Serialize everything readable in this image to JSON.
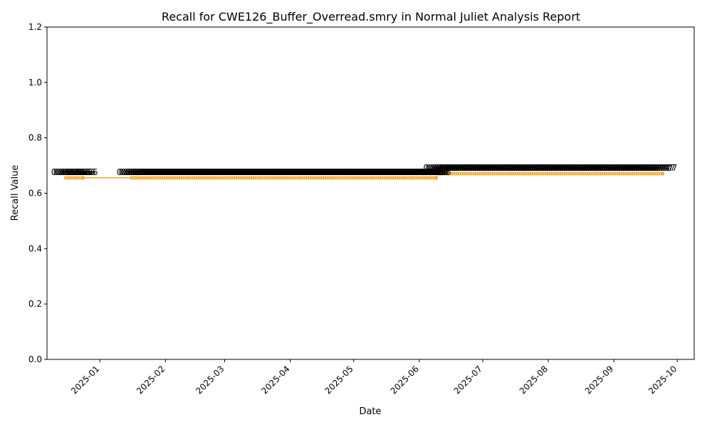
{
  "chart_data": {
    "type": "line",
    "title": "Recall for CWE126_Buffer_Overread.smry in Normal Juliet Analysis Report",
    "xlabel": "Date",
    "ylabel": "Recall Value",
    "ylim": [
      0,
      1.2
    ],
    "yticks": [
      "0.0",
      "0.2",
      "0.4",
      "0.6",
      "0.8",
      "1.0",
      "1.2"
    ],
    "xlim": [
      "2024-12-07",
      "2025-10-09"
    ],
    "xticks": [
      {
        "date": "2025-01-01",
        "label": "2025-01"
      },
      {
        "date": "2025-02-01",
        "label": "2025-02"
      },
      {
        "date": "2025-03-01",
        "label": "2025-03"
      },
      {
        "date": "2025-04-01",
        "label": "2025-04"
      },
      {
        "date": "2025-05-01",
        "label": "2025-05"
      },
      {
        "date": "2025-06-01",
        "label": "2025-06"
      },
      {
        "date": "2025-07-01",
        "label": "2025-07"
      },
      {
        "date": "2025-08-01",
        "label": "2025-08"
      },
      {
        "date": "2025-09-01",
        "label": "2025-09"
      },
      {
        "date": "2025-10-01",
        "label": "2025-10"
      }
    ],
    "grid": false,
    "color": "#f5a623",
    "series": [
      {
        "segments": [
          {
            "start": "2024-12-16",
            "end": "2024-12-24",
            "value": 0.6556,
            "label": "0.6556"
          },
          {
            "start": "2025-01-16",
            "end": "2025-06-09",
            "value": 0.6556,
            "label": "0.6556"
          },
          {
            "start": "2025-06-10",
            "end": "2025-09-24",
            "value": 0.6707,
            "label": "0.6707"
          }
        ]
      }
    ]
  }
}
